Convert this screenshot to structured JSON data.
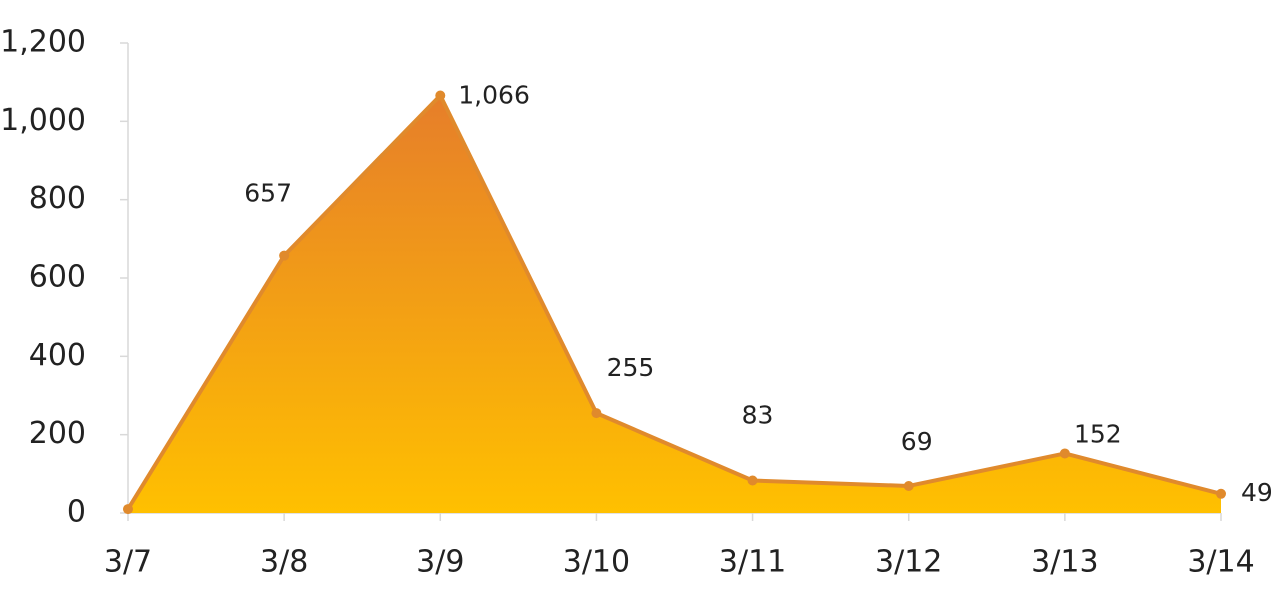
{
  "chart_data": {
    "type": "area",
    "categories": [
      "3/7",
      "3/8",
      "3/9",
      "3/10",
      "3/11",
      "3/12",
      "3/13",
      "3/14"
    ],
    "values": [
      10,
      657,
      1066,
      255,
      83,
      69,
      152,
      49
    ],
    "value_labels": [
      null,
      "657",
      "1,066",
      "255",
      "83",
      "69",
      "152",
      "49"
    ],
    "color": "#E08A2C",
    "fill_gradient": [
      "#E67E2A",
      "#FFC000"
    ],
    "ylim": [
      0,
      1200
    ],
    "yticks": [
      0,
      200,
      400,
      600,
      800,
      {
        "value": 1000,
        "label": "1,000"
      },
      {
        "value": 1200,
        "label": "1,200"
      }
    ],
    "grid": false
  }
}
